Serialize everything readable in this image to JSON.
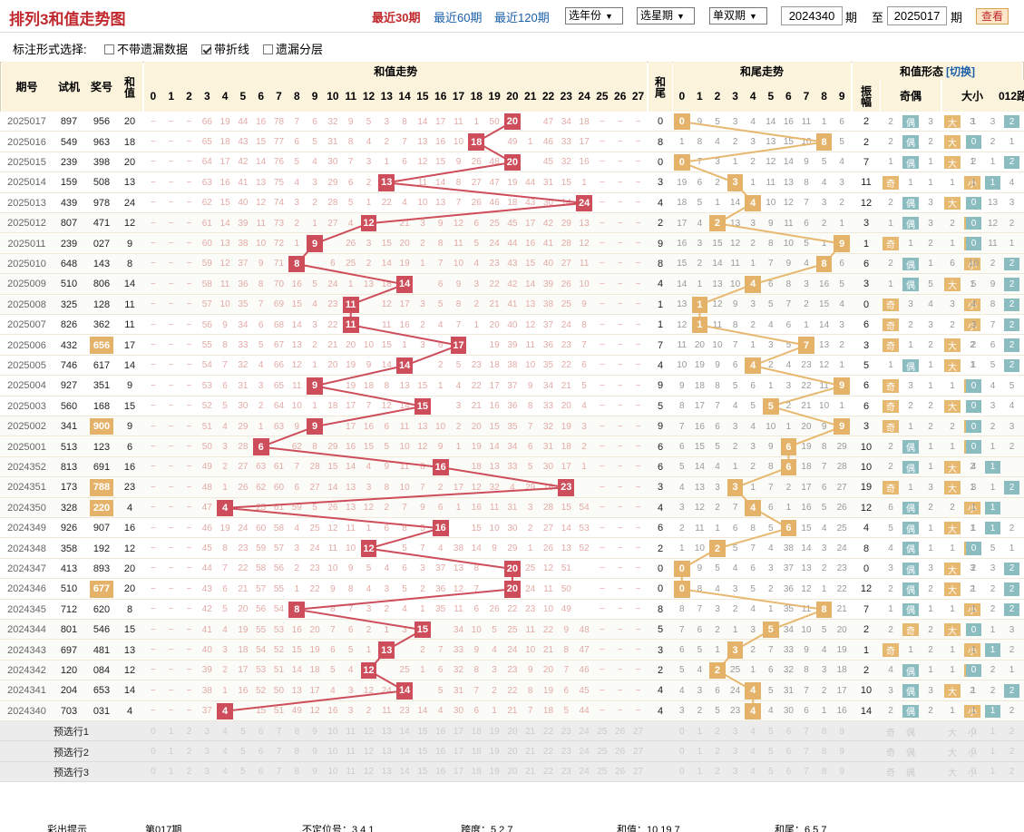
{
  "title": "排列3和值走势图",
  "ranges": [
    "最近30期",
    "最近60期",
    "最近120期"
  ],
  "selects": {
    "year": "选年份",
    "week": "选星期",
    "parity": "单双期"
  },
  "period_from": "2024340",
  "period_to": "2025017",
  "period_unit": "期",
  "to_label": "至",
  "view_button": "查看",
  "options": {
    "label": "标注形式选择:",
    "items": [
      {
        "label": "不带遗漏数据",
        "checked": false
      },
      {
        "label": "带折线",
        "checked": true
      },
      {
        "label": "遗漏分层",
        "checked": false
      }
    ]
  },
  "headers": {
    "period": "期号",
    "trial": "试机",
    "prize": "奖号",
    "sum": "和值",
    "sum_trend": "和值走势",
    "tail": "和尾",
    "tail_trend": "和尾走势",
    "form": "和值形态",
    "switch": "[切换]",
    "amplitude": "振幅",
    "odd_even": "奇偶",
    "big_small": "大小",
    "route": "012路"
  },
  "form_labels": {
    "odd": "奇",
    "even": "偶",
    "big": "大",
    "small": "小"
  },
  "special_numbers": [
    "656",
    "900",
    "788",
    "220",
    "677"
  ],
  "rows": [
    {
      "period": "2025017",
      "trial": "897",
      "prize": "956",
      "sum": 20,
      "tail": 0,
      "amp": 2,
      "sm": "66 19 44 16 78 7 6 32 9 5 3 8 14 17 11 1 50 - 47 34 18 4 73",
      "tm": "- 9 5 3 4 14 16 11 1 6",
      "oe": "2 偶 3",
      "bs": "大 3",
      "r": "1 3 2"
    },
    {
      "period": "2025016",
      "trial": "549",
      "prize": "963",
      "sum": 18,
      "tail": 8,
      "amp": 2,
      "sm": "65 18 43 15 77 6 5 31 8 4 2 7 13 16 10 - 49 1 46 33 17 3 72",
      "tm": "1 8 4 2 3 13 15 10 - 5",
      "oe": "2 偶 2",
      "bs": "大 2",
      "r": "0 2 1"
    },
    {
      "period": "2025015",
      "trial": "239",
      "prize": "398",
      "sum": 20,
      "tail": 0,
      "amp": 7,
      "sm": "64 17 42 14 76 5 4 30 7 3 1 6 12 15 9 26 48 - 45 32 16 2 71",
      "tm": "- 7 3 1 2 12 14 9 5 4",
      "oe": "1 偶 1",
      "bs": "大 1",
      "r": "2 1 2"
    },
    {
      "period": "2025014",
      "trial": "159",
      "prize": "508",
      "sum": 13,
      "tail": 3,
      "amp": 11,
      "sm": "63 16 41 13 75 4 3 29 6 2 - 11 14 8 27 47 19 44 31 15 1 70",
      "tm": "19 6 2 - 1 11 13 8 4 3",
      "oe": "奇 1 1",
      "bs": "小 1",
      "r": "1 1 4"
    },
    {
      "period": "2025013",
      "trial": "439",
      "prize": "978",
      "sum": 24,
      "tail": 4,
      "amp": 12,
      "sm": "62 15 40 12 74 3 2 28 5 1 22 4 10 13 7 26 46 18 43 30 14 - 69",
      "tm": "18 5 1 14 - 10 12 7 3 2",
      "oe": "2 偶 3",
      "bs": "大 1",
      "r": "0 13 3"
    },
    {
      "period": "2025012",
      "trial": "807",
      "prize": "471",
      "sum": 12,
      "tail": 2,
      "amp": 3,
      "sm": "61 14 39 11 73 2 1 27 4 - 21 3 9 12 6 25 45 17 42 29 13 68",
      "tm": "17 4 - 13 3 9 11 6 2 1",
      "oe": "1 偶 3",
      "bs": "小 2",
      "r": "0 12 2"
    },
    {
      "period": "2025011",
      "trial": "239",
      "prize": "027",
      "sum": 9,
      "tail": 9,
      "amp": 1,
      "sm": "60 13 38 10 72 1 - 26 3 15 20 2 8 11 5 24 44 16 41 28 12 67",
      "tm": "16 3 15 12 2 8 10 5 1 -",
      "oe": "奇 1 2",
      "bs": "小 1",
      "r": "0 11 1"
    },
    {
      "period": "2025010",
      "trial": "648",
      "prize": "143",
      "sum": 8,
      "tail": 8,
      "amp": 6,
      "sm": "59 12 37 9 71 - 6 25 2 14 19 1 7 10 4 23 43 15 40 27 11 66",
      "tm": "15 2 14 11 1 7 9 4 - 6",
      "oe": "2 偶 1",
      "bs": "小 6",
      "r": "10 2"
    },
    {
      "period": "2025009",
      "trial": "510",
      "prize": "806",
      "sum": 14,
      "tail": 4,
      "amp": 3,
      "sm": "58 11 36 8 70 16 5 24 1 13 18 - 6 9 3 22 42 14 39 26 10 65",
      "tm": "14 1 13 10 - 6 8 3 16 5",
      "oe": "1 偶 5",
      "bs": "小 1",
      "r": "5 9 2"
    },
    {
      "period": "2025008",
      "trial": "325",
      "prize": "128",
      "sum": 11,
      "tail": 1,
      "amp": 0,
      "sm": "57 10 35 7 69 15 4 23 - 12 17 3 5 8 2 21 41 13 38 25 9 64",
      "tm": "13 - 12 9 3 5 7 2 15 4",
      "oe": "奇 3 4",
      "bs": "小 3",
      "r": "4 8 2"
    },
    {
      "period": "2025007",
      "trial": "826",
      "prize": "362",
      "sum": 11,
      "tail": 1,
      "amp": 6,
      "sm": "56 9 34 6 68 14 3 22 - 11 16 2 4 7 1 20 40 12 37 24 8 63",
      "tm": "12 - 11 8 2 4 6 1 14 3",
      "oe": "奇 2 3",
      "bs": "小 2",
      "r": "3 7 2"
    },
    {
      "period": "2025006",
      "trial": "432",
      "prize": "656",
      "sum": 17,
      "tail": 7,
      "amp": 3,
      "sm": "55 8 33 5 67 13 2 21 20 10 15 1 3 6 - 19 39 11 36 23 7 62",
      "tm": "11 20 10 7 1 3 5 - 13 2",
      "oe": "奇 1 2",
      "bs": "大 2",
      "r": "2 6 2"
    },
    {
      "period": "2025005",
      "trial": "746",
      "prize": "617",
      "sum": 14,
      "tail": 4,
      "amp": 5,
      "sm": "54 7 32 4 66 12 1 20 19 9 14 - 2 5 23 18 38 10 35 22 6 61",
      "tm": "10 19 9 6 - 2 4 23 12 1",
      "oe": "1 偶 1",
      "bs": "大 1",
      "r": "1 5 2"
    },
    {
      "period": "2025004",
      "trial": "927",
      "prize": "351",
      "sum": 9,
      "tail": 9,
      "amp": 6,
      "sm": "53 6 31 3 65 11 - 19 18 8 13 15 1 4 22 17 37 9 34 21 5 60",
      "tm": "9 18 8 5 6 1 3 22 11 -",
      "oe": "奇 3 1",
      "bs": "小 1",
      "r": "0 4 5"
    },
    {
      "period": "2025003",
      "trial": "560",
      "prize": "168",
      "sum": 15,
      "tail": 5,
      "amp": 6,
      "sm": "52 5 30 2 64 10 1 18 17 7 12 14 - 3 21 16 36 8 33 20 4 59",
      "tm": "8 17 7 4 5 - 2 21 10 1",
      "oe": "奇 2 2",
      "bs": "大 1",
      "r": "0 3 4"
    },
    {
      "period": "2025002",
      "trial": "341",
      "prize": "900",
      "sum": 9,
      "tail": 9,
      "amp": 3,
      "sm": "51 4 29 1 63 9 - 17 16 6 11 13 10 2 20 15 35 7 32 19 3 58",
      "tm": "7 16 6 3 4 10 1 20 9 -",
      "oe": "奇 1 2",
      "bs": "小 2",
      "r": "0 2 3"
    },
    {
      "period": "2025001",
      "trial": "513",
      "prize": "123",
      "sum": 6,
      "tail": 6,
      "amp": 10,
      "sm": "50 3 28 - 62 8 29 16 15 5 10 12 9 1 19 14 34 6 31 18 2 57",
      "tm": "6 15 5 2 3 9 - 19 8 29",
      "oe": "2 偶 1",
      "bs": "小 1",
      "r": "0 1 2"
    },
    {
      "period": "2024352",
      "trial": "813",
      "prize": "691",
      "sum": 16,
      "tail": 6,
      "amp": 10,
      "sm": "49 2 27 63 61 7 28 15 14 4 9 11 8 - 18 13 33 5 30 17 1 56",
      "tm": "5 14 4 1 2 8 - 18 7 28",
      "oe": "2 偶 1",
      "bs": "大 2",
      "r": "4 1"
    },
    {
      "period": "2024351",
      "trial": "173",
      "prize": "788",
      "sum": 23,
      "tail": 3,
      "amp": 19,
      "sm": "48 1 26 62 60 6 27 14 13 3 8 10 7 2 17 12 32 4 29 16 - 55",
      "tm": "4 13 3 - 1 7 2 17 6 27",
      "oe": "奇 1 3",
      "bs": "大 1",
      "r": "3 1 2"
    },
    {
      "period": "2024350",
      "trial": "328",
      "prize": "220",
      "sum": 4,
      "tail": 4,
      "amp": 12,
      "sm": "47 - 25 61 59 5 26 13 12 2 7 9 6 1 16 11 31 3 28 15 54",
      "tm": "3 12 2 7 - 6 1 16 5 26",
      "oe": "6 偶 2",
      "bs": "小 2",
      "r": "1 3"
    },
    {
      "period": "2024349",
      "trial": "926",
      "prize": "907",
      "sum": 16,
      "tail": 6,
      "amp": 4,
      "sm": "46 19 24 60 58 4 25 12 11 1 6 8 5 - 15 10 30 2 27 14 53",
      "tm": "2 11 1 6 8 5 - 15 4 25",
      "oe": "5 偶 1",
      "bs": "大 1",
      "r": "1 1 2"
    },
    {
      "period": "2024348",
      "trial": "358",
      "prize": "192",
      "sum": 12,
      "tail": 2,
      "amp": 8,
      "sm": "45 8 23 59 57 3 24 11 10 - 5 7 4 38 14 9 29 1 26 13 52",
      "tm": "1 10 - 5 7 4 38 14 3 24",
      "oe": "4 偶 1",
      "bs": "小 1",
      "r": "0 5 1"
    },
    {
      "period": "2024347",
      "trial": "413",
      "prize": "893",
      "sum": 20,
      "tail": 0,
      "amp": 0,
      "sm": "44 7 22 58 56 2 23 10 9 5 4 6 3 37 13 8 - 25 12 51",
      "tm": "- 9 5 4 6 3 37 13 2 23",
      "oe": "3 偶 3",
      "bs": "大 3",
      "r": "2 3 4"
    },
    {
      "period": "2024346",
      "trial": "510",
      "prize": "677",
      "sum": 20,
      "tail": 0,
      "amp": 12,
      "sm": "43 6 21 57 55 1 22 9 8 4 3 5 2 36 12 7 - 24 11 50",
      "tm": "- 8 4 3 5 2 36 12 1 22",
      "oe": "2 偶 2",
      "bs": "大 2",
      "r": "1 2 3"
    },
    {
      "period": "2024345",
      "trial": "712",
      "prize": "620",
      "sum": 8,
      "tail": 8,
      "amp": 7,
      "sm": "42 5 20 56 54 - 8 7 3 2 4 1 35 11 6 26 22 23 10 49",
      "tm": "8 7 3 2 4 1 35 11 - 21",
      "oe": "1 偶 1",
      "bs": "小 1",
      "r": "1 2"
    },
    {
      "period": "2024344",
      "trial": "801",
      "prize": "546",
      "sum": 15,
      "tail": 5,
      "amp": 2,
      "sm": "41 4 19 55 53 16 20 7 6 2 1 3 - 34 10 5 25 11 22 9 48",
      "tm": "7 6 2 1 3 - 34 10 5 20",
      "oe": "2 奇 2",
      "bs": "大 1",
      "r": "0 1 3"
    },
    {
      "period": "2024343",
      "trial": "697",
      "prize": "481",
      "sum": 13,
      "tail": 3,
      "amp": 1,
      "sm": "40 3 18 54 52 15 19 6 5 1 - 2 7 33 9 4 24 10 21 8 47",
      "tm": "6 5 1 - 2 7 33 9 4 19",
      "oe": "奇 1 2",
      "bs": "小 1",
      "r": "1 1 2"
    },
    {
      "period": "2024342",
      "trial": "120",
      "prize": "084",
      "sum": 12,
      "tail": 2,
      "amp": 2,
      "sm": "39 2 17 53 51 14 18 5 4 - 25 1 6 32 8 3 23 9 20 7 46",
      "tm": "5 4 - 25 1 6 32 8 3 18",
      "oe": "4 偶 1",
      "bs": "小 1",
      "r": "0 2 1"
    },
    {
      "period": "2024341",
      "trial": "204",
      "prize": "653",
      "sum": 14,
      "tail": 4,
      "amp": 10,
      "sm": "38 1 16 52 50 13 17 4 3 12 24 - 5 31 7 2 22 8 19 6 45",
      "tm": "4 3 6 24 - 5 31 7 2 17",
      "oe": "3 偶 3",
      "bs": "大 2",
      "r": "1 2 2"
    },
    {
      "period": "2024340",
      "trial": "703",
      "prize": "031",
      "sum": 4,
      "tail": 4,
      "amp": 14,
      "sm": "37 - 15 51 49 12 16 3 2 11 23 14 4 30 6 1 21 7 18 5 44",
      "tm": "3 2 5 23 - 4 30 6 1 16",
      "oe": "2 偶 2",
      "bs": "小 1",
      "r": "1 1 2"
    }
  ],
  "preselect_labels": [
    "预选行1",
    "预选行2",
    "预选行3"
  ],
  "footer": {
    "tip": "彩出提示",
    "period": "第017期",
    "info1": "不定位号：3 4 1",
    "info2": "跨度：5 2 7",
    "info3": "和值：10 19 7",
    "info4": "和尾：6 5 7"
  }
}
